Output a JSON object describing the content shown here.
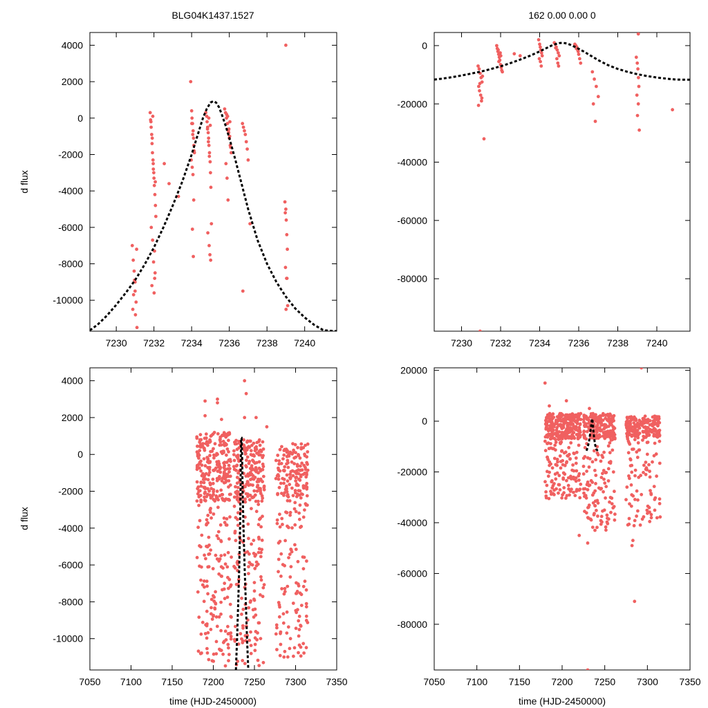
{
  "figure": {
    "title_left": "BLG04K1437.1527",
    "title_right": "162  0.00  0.00  0"
  },
  "colors": {
    "points": "#f06060",
    "model": "#000000"
  },
  "chart_data": [
    {
      "id": "top-left",
      "type": "scatter",
      "title": "",
      "xlabel": "",
      "ylabel": "d flux",
      "xlim": [
        7228.6,
        7241.7
      ],
      "ylim": [
        -11700,
        4700
      ],
      "xticks": [
        7230,
        7232,
        7234,
        7236,
        7238,
        7240
      ],
      "yticks": [
        -10000,
        -8000,
        -6000,
        -4000,
        -2000,
        0,
        2000,
        4000
      ],
      "series": [
        {
          "kind": "points",
          "x": [
            7230.85,
            7230.9,
            7230.95,
            7231.0,
            7231.05,
            7230.88,
            7231.1,
            7230.92,
            7231.0,
            7231.08,
            7230.97,
            7231.02,
            7231.8,
            7231.82,
            7231.85,
            7231.88,
            7231.9,
            7231.92,
            7231.95,
            7231.97,
            7232.0,
            7232.02,
            7232.05,
            7232.08,
            7232.1,
            7231.86,
            7231.93,
            7232.03,
            7231.98,
            7232.06,
            7231.89,
            7232.01,
            7232.04,
            7231.91,
            7231.96,
            7231.99,
            7232.07,
            7231.84,
            7231.94,
            7232.55,
            7232.8,
            7233.3,
            7233.95,
            7234.0,
            7234.02,
            7234.05,
            7234.08,
            7234.1,
            7234.12,
            7234.15,
            7233.98,
            7234.03,
            7234.07,
            7234.11,
            7234.04,
            7234.09,
            7234.01,
            7234.06,
            7234.13,
            7234.75,
            7234.8,
            7234.82,
            7234.85,
            7234.88,
            7234.9,
            7234.92,
            7234.95,
            7234.98,
            7235.0,
            7235.02,
            7235.05,
            7234.86,
            7234.93,
            7234.97,
            7235.01,
            7234.89,
            7234.94,
            7234.84,
            7234.99,
            7234.91,
            7235.75,
            7235.8,
            7235.85,
            7235.9,
            7235.95,
            7236.0,
            7236.05,
            7236.1,
            7235.82,
            7235.88,
            7235.93,
            7235.98,
            7236.02,
            7235.86,
            7236.07,
            7235.91,
            7236.03,
            7235.97,
            7236.7,
            7236.75,
            7236.8,
            7236.85,
            7236.9,
            7236.95,
            7237.0,
            7237.1,
            7236.72,
            7238.95,
            7239.0,
            7239.02,
            7239.05,
            7239.08,
            7238.98,
            7239.04,
            7239.1,
            7239.01,
            7238.97,
            7239.06
          ],
          "y": [
            -7000,
            -7800,
            -8400,
            -9500,
            -10100,
            -10500,
            -11500,
            -9700,
            -9000,
            -7200,
            -8900,
            -10800,
            300,
            -100,
            -500,
            -900,
            -1400,
            -1900,
            -2300,
            -2800,
            -3300,
            -3700,
            -4200,
            -4800,
            -5400,
            -6000,
            -6700,
            -7300,
            -7900,
            -8500,
            -9200,
            -9600,
            -8800,
            -1100,
            -2500,
            -3000,
            -3500,
            -200,
            100,
            -2500,
            -3600,
            -4300,
            2000,
            400,
            0,
            -300,
            -700,
            -1100,
            -1500,
            -1900,
            -2300,
            -2700,
            -3100,
            -4500,
            -6100,
            -7600,
            -300,
            -900,
            -1800,
            300,
            100,
            -200,
            -500,
            -800,
            -1100,
            -1500,
            -1900,
            -2400,
            -3000,
            -3800,
            -5800,
            -6300,
            -7000,
            -7500,
            -7800,
            -1300,
            -2100,
            -600,
            -400,
            0,
            500,
            300,
            0,
            -300,
            -700,
            -1100,
            -1500,
            -1900,
            -2500,
            -3300,
            -4500,
            -600,
            -1000,
            200,
            -1600,
            100,
            -200,
            -800,
            -300,
            -500,
            -700,
            -900,
            -1300,
            -1700,
            -2300,
            -5800,
            -9500,
            -4600,
            -5000,
            -5600,
            -6400,
            -7200,
            -8200,
            -8800,
            -10300,
            -10500,
            -5200,
            -8800
          ],
          "extra": {
            "x": [
              7239.0
            ],
            "y": [
              4000
            ]
          }
        },
        {
          "kind": "model",
          "x": [
            7228.6,
            7229.0,
            7229.5,
            7230.0,
            7230.5,
            7231.0,
            7231.5,
            7232.0,
            7232.5,
            7233.0,
            7233.5,
            7234.0,
            7234.3,
            7234.6,
            7234.8,
            7235.0,
            7235.15,
            7235.3,
            7235.45,
            7235.6,
            7235.8,
            7236.0,
            7236.3,
            7236.6,
            7237.0,
            7237.5,
            7238.0,
            7238.5,
            7239.0,
            7239.5,
            7240.0,
            7240.5,
            7241.0,
            7241.7
          ],
          "y": [
            -11650,
            -11350,
            -10850,
            -10250,
            -9600,
            -8900,
            -8050,
            -7100,
            -6000,
            -4800,
            -3500,
            -2000,
            -1000,
            0,
            500,
            850,
            930,
            850,
            600,
            200,
            -400,
            -1100,
            -2200,
            -3400,
            -5000,
            -6700,
            -8000,
            -9000,
            -9800,
            -10450,
            -10950,
            -11350,
            -11650,
            -11700
          ]
        }
      ]
    },
    {
      "id": "top-right",
      "type": "scatter",
      "title": "162  0.00  0.00  0",
      "xlabel": "",
      "ylabel": "",
      "xlim": [
        7228.6,
        7241.7
      ],
      "ylim": [
        -98000,
        4500
      ],
      "xticks": [
        7230,
        7232,
        7234,
        7236,
        7238,
        7240
      ],
      "yticks": [
        -80000,
        -60000,
        -40000,
        -20000,
        0
      ],
      "series": [
        {
          "kind": "points",
          "x": [
            7230.85,
            7230.9,
            7230.95,
            7231.0,
            7231.05,
            7230.88,
            7230.92,
            7230.98,
            7231.02,
            7230.87,
            7230.94,
            7231.07,
            7231.04,
            7231.8,
            7231.83,
            7231.86,
            7231.9,
            7231.93,
            7231.96,
            7232.0,
            7232.03,
            7232.06,
            7232.09,
            7231.88,
            7231.98,
            7232.01,
            7231.91,
            7232.7,
            7233.0,
            7233.95,
            7234.0,
            7234.03,
            7234.06,
            7234.1,
            7234.13,
            7233.98,
            7234.04,
            7234.08,
            7234.75,
            7234.8,
            7234.85,
            7234.9,
            7234.95,
            7235.0,
            7234.82,
            7234.88,
            7234.93,
            7234.97,
            7235.8,
            7235.85,
            7235.9,
            7235.95,
            7236.0,
            7236.05,
            7236.1,
            7235.88,
            7235.97,
            7236.7,
            7236.8,
            7236.9,
            7237.0,
            7236.75,
            7236.85,
            7238.95,
            7239.0,
            7239.03,
            7239.06,
            7239.08,
            7238.98,
            7239.05,
            7239.01,
            7239.1,
            7240.8
          ],
          "y": [
            -7000,
            -8000,
            -9500,
            -11000,
            -12500,
            -14000,
            -15500,
            -17000,
            -19000,
            -20500,
            -13000,
            -10500,
            -18000,
            0,
            -1000,
            -2000,
            -3000,
            -4000,
            -5000,
            -6500,
            -7500,
            -8500,
            -9000,
            -1500,
            -2500,
            -3500,
            -5500,
            -2800,
            -3500,
            2000,
            500,
            -500,
            -1500,
            -2500,
            -3500,
            -4500,
            -5500,
            -7000,
            1000,
            500,
            -500,
            -1500,
            -2500,
            -3500,
            -800,
            -4500,
            -6000,
            -7000,
            500,
            0,
            -500,
            -1500,
            -3000,
            -4500,
            -6000,
            -1000,
            -2000,
            -9000,
            -11500,
            -14000,
            -17500,
            -20000,
            -26000,
            -4000,
            -6000,
            -8000,
            -11000,
            -14000,
            -17000,
            -20000,
            -24000,
            -29000,
            -22000
          ],
          "extra": {
            "x": [
              7231.15,
              7230.95,
              7239.05
            ],
            "y": [
              -32000,
              -98000,
              4000
            ]
          }
        },
        {
          "kind": "model",
          "x": [
            7228.6,
            7229.0,
            7229.5,
            7230.0,
            7230.5,
            7231.0,
            7231.5,
            7232.0,
            7232.5,
            7233.0,
            7233.5,
            7234.0,
            7234.3,
            7234.6,
            7234.8,
            7235.0,
            7235.15,
            7235.3,
            7235.45,
            7235.6,
            7235.8,
            7236.0,
            7236.3,
            7236.6,
            7237.0,
            7237.5,
            7238.0,
            7238.5,
            7239.0,
            7239.5,
            7240.0,
            7240.5,
            7241.0,
            7241.7
          ],
          "y": [
            -11650,
            -11350,
            -10850,
            -10250,
            -9600,
            -8900,
            -8050,
            -7100,
            -6000,
            -4800,
            -3500,
            -2000,
            -1000,
            0,
            500,
            850,
            930,
            850,
            600,
            200,
            -400,
            -1100,
            -2200,
            -3400,
            -5000,
            -6700,
            -8000,
            -9000,
            -9800,
            -10450,
            -10950,
            -11350,
            -11650,
            -11700
          ]
        }
      ]
    },
    {
      "id": "bottom-left",
      "type": "scatter",
      "title": "",
      "xlabel": "time (HJD-2450000)",
      "ylabel": "d flux",
      "xlim": [
        7050,
        7350
      ],
      "ylim": [
        -11700,
        4700
      ],
      "xticks": [
        7050,
        7100,
        7150,
        7200,
        7250,
        7300,
        7350
      ],
      "yticks": [
        -10000,
        -8000,
        -6000,
        -4000,
        -2000,
        0,
        2000,
        4000
      ],
      "series": [
        {
          "kind": "points",
          "generated": true,
          "clusters": [
            {
              "x_from": 7180,
              "x_to": 7222,
              "y_hi": 1200,
              "y_lo": -11500,
              "dense_lo": -2600,
              "n": 380
            },
            {
              "x_from": 7225,
              "x_to": 7262,
              "y_hi": 800,
              "y_lo": -11500,
              "dense_lo": -2600,
              "n": 300
            },
            {
              "x_from": 7276,
              "x_to": 7315,
              "y_hi": 600,
              "y_lo": -11000,
              "dense_lo": -2300,
              "n": 260
            }
          ],
          "extra": {
            "x": [
              7190,
              7190,
              7205,
              7205,
              7210,
              7238,
              7240,
              7238,
              7252,
              7265,
              7290,
              7300
            ],
            "y": [
              2900,
              2100,
              3000,
              2800,
              1900,
              4000,
              3300,
              2000,
              2000,
              1500,
              200,
              100
            ]
          }
        },
        {
          "kind": "model",
          "x": [
            7227.5,
            7228.9,
            7230.3,
            7231.6,
            7232.5,
            7233.1,
            7233.5,
            7233.9,
            7234.4,
            7235.0,
            7235.6,
            7236.7,
            7238.0,
            7239.5,
            7241.0,
            7242.5
          ],
          "y": [
            -11700,
            -10000,
            -8000,
            -6000,
            -4000,
            -2000,
            0,
            900,
            900,
            0,
            -2000,
            -4000,
            -6000,
            -8000,
            -10000,
            -11700
          ]
        }
      ]
    },
    {
      "id": "bottom-right",
      "type": "scatter",
      "title": "",
      "xlabel": "time (HJD-2450000)",
      "ylabel": "",
      "xlim": [
        7050,
        7350
      ],
      "ylim": [
        -98000,
        21000
      ],
      "xticks": [
        7050,
        7100,
        7150,
        7200,
        7250,
        7300,
        7350
      ],
      "yticks": [
        -80000,
        -60000,
        -40000,
        -20000,
        0,
        20000
      ],
      "series": [
        {
          "kind": "points",
          "generated": true,
          "clusters": [
            {
              "x_from": 7180,
              "x_to": 7222,
              "y_hi": 3000,
              "y_lo": -31000,
              "dense_lo": -7000,
              "n": 380
            },
            {
              "x_from": 7225,
              "x_to": 7262,
              "y_hi": 3000,
              "y_lo": -43000,
              "dense_lo": -7000,
              "n": 300
            },
            {
              "x_from": 7275,
              "x_to": 7315,
              "y_hi": 2000,
              "y_lo": -42000,
              "dense_lo": -6000,
              "n": 260
            }
          ],
          "extra": {
            "x": [
              7180,
              7185,
              7205,
              7220,
              7230,
              7232,
              7293,
              7282,
              7283,
              7285,
              7230
            ],
            "y": [
              15000,
              6000,
              8000,
              -45000,
              -48000,
              5000,
              21000,
              -49000,
              -47000,
              -71000,
              -98000
            ]
          }
        },
        {
          "kind": "model",
          "x": [
            7228.6,
            7230.0,
            7231.5,
            7233.0,
            7234.0,
            7235.0,
            7235.4,
            7236.0,
            7237.0,
            7238.5,
            7240.0,
            7241.7
          ],
          "y": [
            -11650,
            -10250,
            -8050,
            -4800,
            -2000,
            850,
            930,
            -1100,
            -5000,
            -9000,
            -10950,
            -11700
          ]
        }
      ]
    }
  ]
}
